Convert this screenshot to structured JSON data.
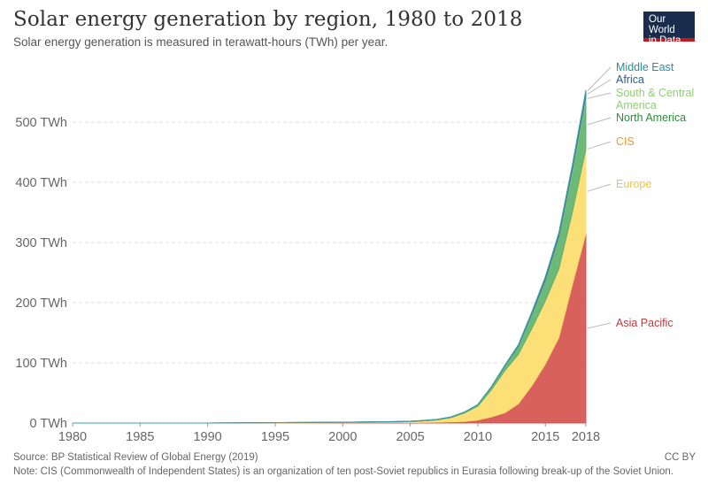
{
  "header": {
    "title": "Solar energy generation by region, 1980 to 2018",
    "subtitle": "Solar energy generation is measured in terawatt-hours (TWh) per year."
  },
  "logo": {
    "line1": "Our World",
    "line2": "in Data"
  },
  "footer": {
    "source": "Source: BP Statistical Review of Global Energy (2019)",
    "note": "Note: CIS (Commonwealth of Independent States) is an organization of ten post-Soviet republics in Eurasia following break-up of the Soviet Union.",
    "license": "CC BY"
  },
  "chart_data": {
    "type": "area",
    "stacked": true,
    "title": "Solar energy generation by region, 1980 to 2018",
    "subtitle": "Solar energy generation is measured in terawatt-hours (TWh) per year.",
    "xlabel": "",
    "ylabel": "",
    "x": [
      1980,
      1990,
      2000,
      2004,
      2005,
      2006,
      2007,
      2008,
      2009,
      2010,
      2011,
      2012,
      2013,
      2014,
      2015,
      2016,
      2017,
      2018
    ],
    "xlim": [
      1980,
      2018
    ],
    "ylim": [
      0,
      600
    ],
    "x_ticks": [
      "1980",
      "1985",
      "1990",
      "1995",
      "2000",
      "2005",
      "2010",
      "2015",
      "2018"
    ],
    "y_ticks": [
      "0 TWh",
      "100 TWh",
      "200 TWh",
      "300 TWh",
      "400 TWh",
      "500 TWh"
    ],
    "grid": "horizontal dashed",
    "legend": "right, labels at series ends",
    "series": [
      {
        "name": "Asia Pacific",
        "color": "#d6544f",
        "values": [
          0,
          0,
          0.5,
          0.7,
          0.8,
          1.0,
          1.2,
          1.8,
          2.5,
          5,
          10,
          17,
          32,
          62,
          98,
          142,
          230,
          315
        ]
      },
      {
        "name": "Europe",
        "color": "#fddc6b",
        "values": [
          0,
          0,
          0.3,
          1.0,
          1.5,
          2.5,
          4.0,
          7.0,
          14,
          23,
          45,
          70,
          82,
          95,
          105,
          114,
          120,
          140
        ]
      },
      {
        "name": "CIS",
        "color": "#f4b24a",
        "values": [
          0,
          0,
          0,
          0,
          0,
          0,
          0,
          0,
          0,
          0,
          0,
          0,
          0,
          0.1,
          0.2,
          0.3,
          0.5,
          0.8
        ]
      },
      {
        "name": "North America",
        "color": "#5fb36c",
        "values": [
          0,
          0,
          0.5,
          0.6,
          0.6,
          0.7,
          0.8,
          1.2,
          1.5,
          2.5,
          5,
          8,
          14,
          24,
          34,
          52,
          67,
          80
        ]
      },
      {
        "name": "South & Central America",
        "color": "#8fcf74",
        "values": [
          0,
          0,
          0,
          0,
          0,
          0,
          0,
          0,
          0,
          0,
          0,
          0.1,
          0.2,
          0.5,
          1,
          2,
          4,
          7
        ]
      },
      {
        "name": "Africa",
        "color": "#3f6da6",
        "values": [
          0,
          0,
          0,
          0,
          0,
          0,
          0,
          0,
          0,
          0.1,
          0.3,
          0.8,
          1.5,
          2.5,
          4,
          5,
          6,
          8
        ]
      },
      {
        "name": "Middle East",
        "color": "#3aa1a6",
        "values": [
          0,
          0,
          0,
          0,
          0,
          0,
          0,
          0,
          0,
          0,
          0,
          0.1,
          0.2,
          0.4,
          0.7,
          1.0,
          1.5,
          2.5
        ]
      }
    ]
  }
}
